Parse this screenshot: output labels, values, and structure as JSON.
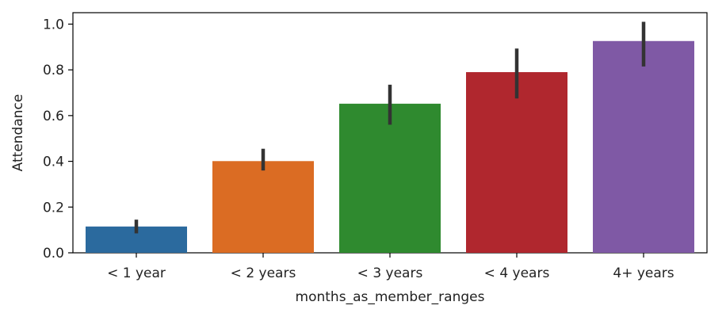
{
  "chart_data": {
    "type": "bar",
    "xlabel": "months_as_member_ranges",
    "ylabel": "Attendance",
    "ylim": [
      0,
      1.05
    ],
    "yticks": [
      0.0,
      0.2,
      0.4,
      0.6,
      0.8,
      1.0
    ],
    "ytick_labels": [
      "0.0",
      "0.2",
      "0.4",
      "0.6",
      "0.8",
      "1.0"
    ],
    "categories": [
      "< 1 year",
      "< 2 years",
      "< 3 years",
      "< 4 years",
      "4+ years"
    ],
    "values": [
      0.115,
      0.401,
      0.652,
      0.79,
      0.926
    ],
    "error_low": [
      0.085,
      0.36,
      0.56,
      0.675,
      0.815
    ],
    "error_high": [
      0.145,
      0.455,
      0.735,
      0.893,
      1.01
    ],
    "colors": [
      "#2b6a9e",
      "#db6c23",
      "#2f8a2f",
      "#b0272e",
      "#7f59a5"
    ],
    "error_color": "#333333",
    "grid": false,
    "legend": "none"
  }
}
